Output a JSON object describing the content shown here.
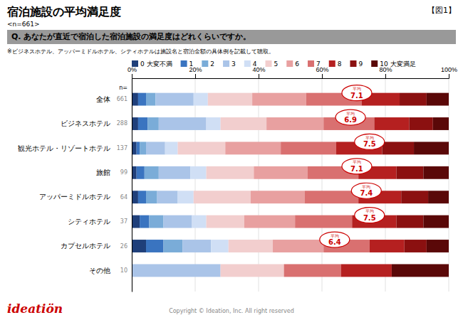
{
  "chart_data": {
    "type": "bar",
    "orientation": "horizontal",
    "stacked": true,
    "grid": true,
    "title": "宿泊施設の平均満足度",
    "figure_label": "【図1】",
    "n_label": "<n=661>",
    "question": "Q. あなたが直近で宿泊した宿泊施設の満足度はどれくらいですか。",
    "note": "※ビジネスホテル、アッパーミドルホテル、シティホテルは施設名と宿泊金額の具体例を記載して聴取。",
    "copyright": "Copyright © Ideation, Inc. All right reserved",
    "logo": "ideatiön",
    "n_header": "n=",
    "average_label": "平均",
    "categories": [
      "全体",
      "ビジネスホテル",
      "観光ホテル・リゾートホテル",
      "旅館",
      "アッパーミドルホテル",
      "シティホテル",
      "カプセルホテル",
      "その他"
    ],
    "n_values": [
      661,
      288,
      137,
      99,
      64,
      37,
      26,
      10
    ],
    "averages": [
      7.1,
      6.9,
      7.5,
      7.1,
      7.4,
      7.5,
      6.4,
      null
    ],
    "average_scale": [
      0,
      10
    ],
    "xlim": [
      0,
      100
    ],
    "xticks": [
      {
        "value": 0,
        "label": "0%"
      },
      {
        "value": 20,
        "label": "20%"
      },
      {
        "value": 40,
        "label": "40%"
      },
      {
        "value": 60,
        "label": "60%"
      },
      {
        "value": 80,
        "label": "80%"
      },
      {
        "value": 100,
        "label": "100%"
      }
    ],
    "series": [
      {
        "name": "0 大変不満",
        "color": "#1f3f7a",
        "values": [
          2.0,
          2.0,
          1.5,
          1.5,
          2.0,
          2.5,
          4.5,
          0.0
        ]
      },
      {
        "name": "1",
        "color": "#3a74c0",
        "values": [
          2.5,
          3.0,
          1.0,
          2.5,
          2.5,
          3.0,
          5.5,
          0.0
        ]
      },
      {
        "name": "2",
        "color": "#7aacd8",
        "values": [
          3.0,
          3.5,
          2.0,
          4.5,
          3.5,
          4.5,
          6.0,
          0.0
        ]
      },
      {
        "name": "3",
        "color": "#aac4e8",
        "values": [
          12.0,
          15.0,
          6.0,
          10.0,
          6.5,
          9.0,
          9.0,
          28.0
        ]
      },
      {
        "name": "4",
        "color": "#d0dff5",
        "values": [
          4.5,
          4.5,
          4.0,
          5.0,
          5.0,
          4.5,
          5.5,
          0.0
        ]
      },
      {
        "name": "5",
        "color": "#f2cece",
        "values": [
          14.0,
          14.5,
          15.0,
          15.0,
          18.0,
          12.0,
          14.0,
          20.0
        ]
      },
      {
        "name": "6",
        "color": "#e8a0a0",
        "values": [
          17.0,
          18.0,
          17.5,
          17.0,
          17.0,
          16.0,
          16.0,
          0.0
        ]
      },
      {
        "name": "7",
        "color": "#d97070",
        "values": [
          17.5,
          16.0,
          17.5,
          16.0,
          17.0,
          18.0,
          14.5,
          18.0
        ]
      },
      {
        "name": "8",
        "color": "#b52020",
        "values": [
          12.0,
          11.0,
          14.5,
          12.0,
          13.5,
          14.0,
          11.0,
          16.0
        ]
      },
      {
        "name": "9",
        "color": "#8b1010",
        "values": [
          8.5,
          7.5,
          10.0,
          8.5,
          8.5,
          8.5,
          7.0,
          0.0
        ]
      },
      {
        "name": "10 大変満足",
        "color": "#5a0808",
        "values": [
          7.0,
          5.0,
          11.0,
          8.0,
          6.5,
          8.0,
          7.0,
          18.0
        ]
      }
    ]
  }
}
